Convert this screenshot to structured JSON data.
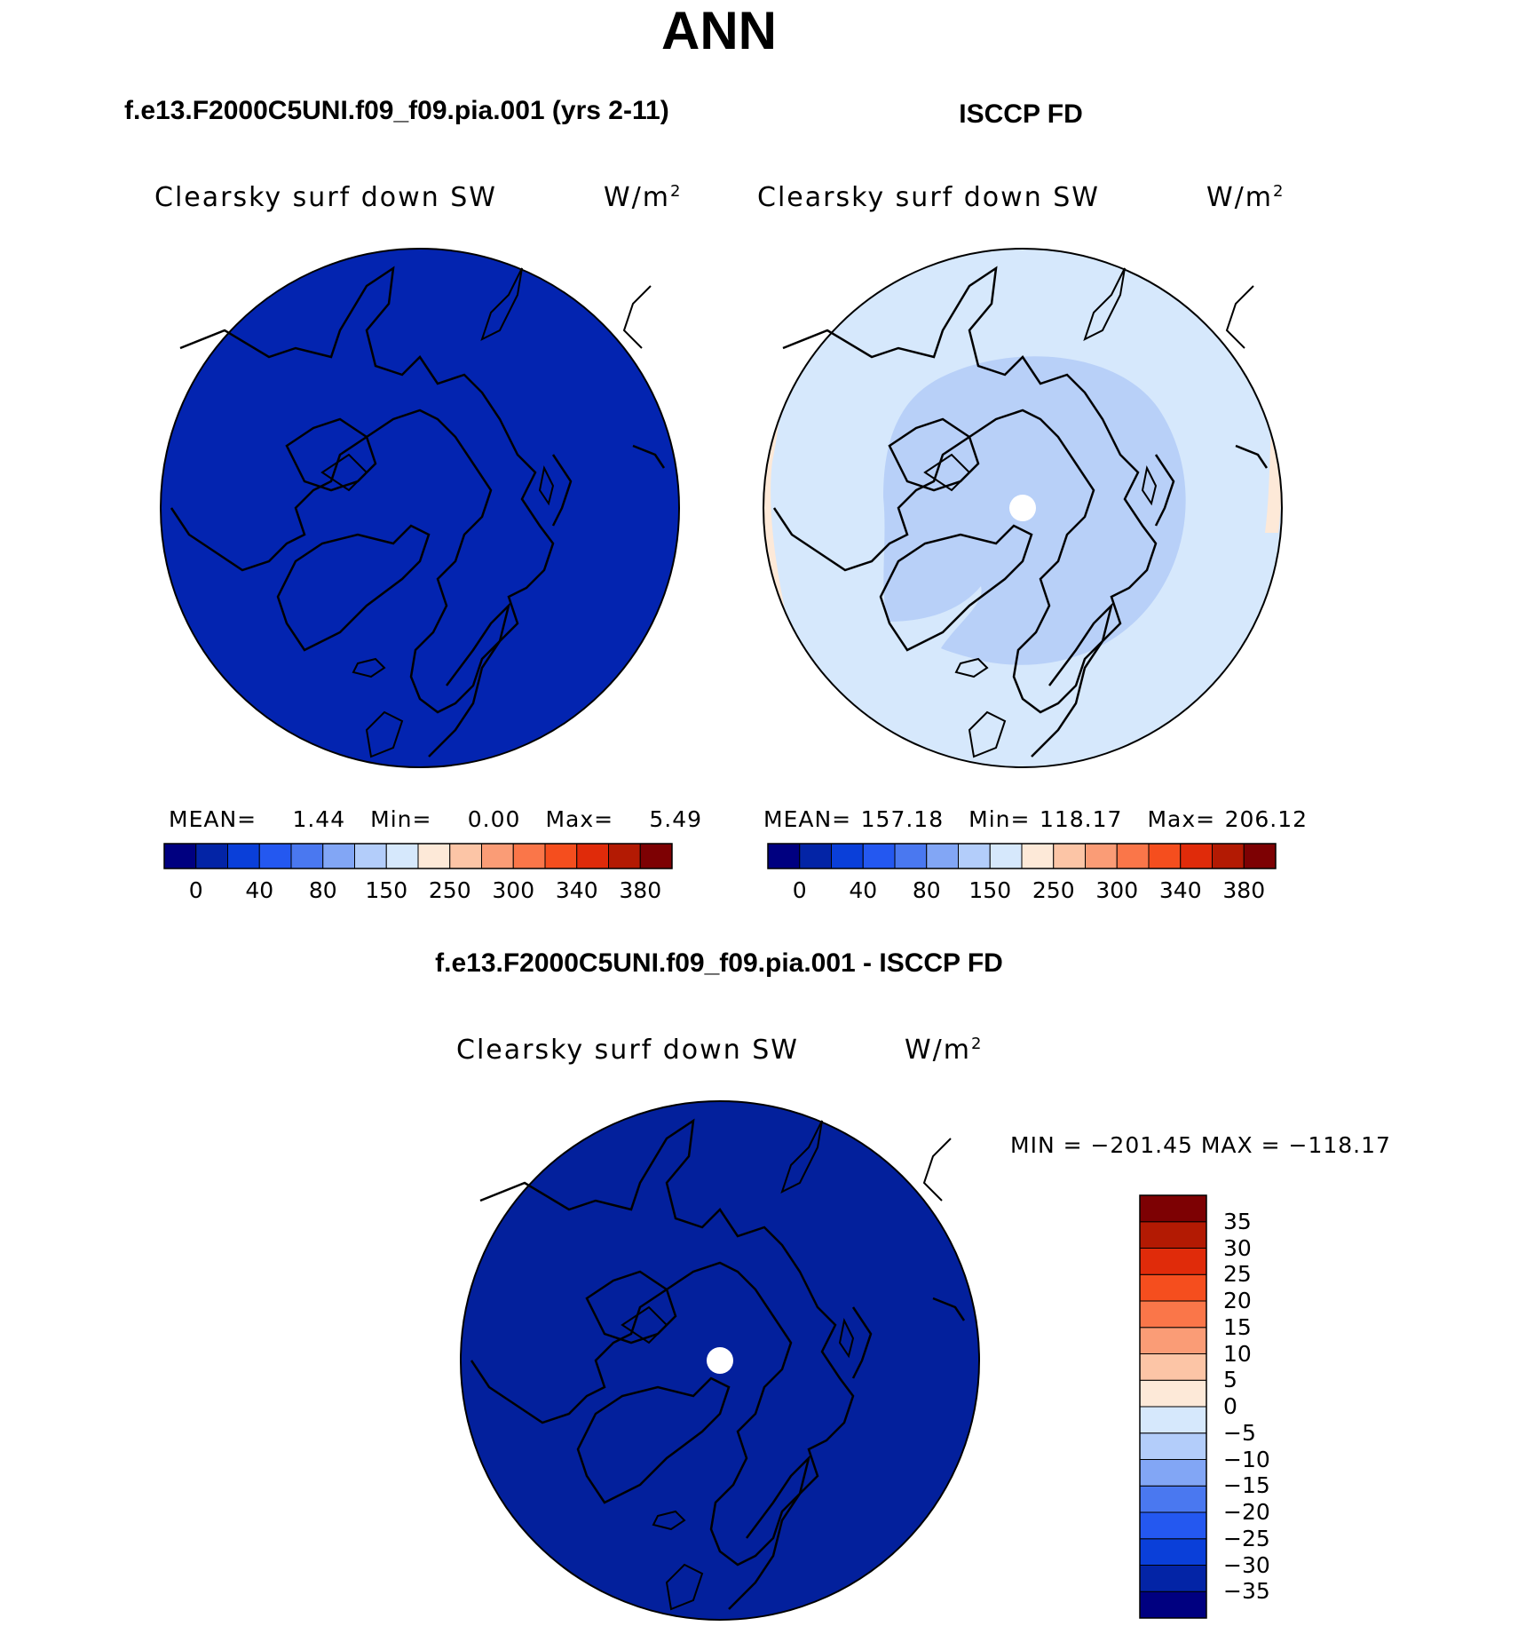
{
  "title": "ANN",
  "panels": [
    {
      "id": "model",
      "heading": "f.e13.F2000C5UNI.f09_f09.pia.001 (yrs 2-11)",
      "variable": "Clearsky surf down SW",
      "units_base": "W/m",
      "units_exp": "2",
      "stats": {
        "mean_label": "MEAN=",
        "mean": "1.44",
        "min_label": "Min=",
        "min": "0.00",
        "max_label": "Max=",
        "max": "5.49"
      },
      "colorbar_ticks": [
        "0",
        "40",
        "80",
        "150",
        "250",
        "300",
        "340",
        "380"
      ]
    },
    {
      "id": "obs",
      "heading": "ISCCP FD",
      "variable": "Clearsky surf down SW",
      "units_base": "W/m",
      "units_exp": "2",
      "stats": {
        "mean_label": "MEAN=",
        "mean": "157.18",
        "min_label": "Min=",
        "min": "118.17",
        "max_label": "Max=",
        "max": "206.12"
      },
      "colorbar_ticks": [
        "0",
        "40",
        "80",
        "150",
        "250",
        "300",
        "340",
        "380"
      ]
    },
    {
      "id": "diff",
      "heading": "f.e13.F2000C5UNI.f09_f09.pia.001 - ISCCP FD",
      "variable": "Clearsky surf down SW",
      "units_base": "W/m",
      "units_exp": "2",
      "range_text": "MIN = −201.45 MAX = −118.17",
      "colorbar_ticks": [
        "35",
        "30",
        "25",
        "20",
        "15",
        "10",
        "5",
        "0",
        "−5",
        "−10",
        "−15",
        "−20",
        "−25",
        "−30",
        "−35"
      ]
    }
  ],
  "colors": {
    "abs_scale": [
      "#000080",
      "#0324a6",
      "#0a3fd9",
      "#2458f0",
      "#4a78f0",
      "#82a6f5",
      "#b3cdfa",
      "#d6e8fc",
      "#fde9d8",
      "#fcc5a6",
      "#fa9c76",
      "#fa7649",
      "#f54e1e",
      "#e02b0a",
      "#b31a03",
      "#7d0103"
    ],
    "diff_scale": [
      "#000080",
      "#0324a6",
      "#0a3fd9",
      "#2458f0",
      "#4a78f0",
      "#82a6f5",
      "#b3cdfa",
      "#d6e8fc",
      "#fde9d8",
      "#fcc5a6",
      "#fa9c76",
      "#fa7649",
      "#f54e1e",
      "#e02b0a",
      "#b31a03",
      "#7d0103"
    ],
    "model_fill": "#0324b0",
    "obs_outer": "#d6e8fc",
    "obs_inner": "#b8d0f8",
    "obs_edge": "#fde9d8",
    "diff_fill": "#03209c",
    "coast": "#000000"
  }
}
